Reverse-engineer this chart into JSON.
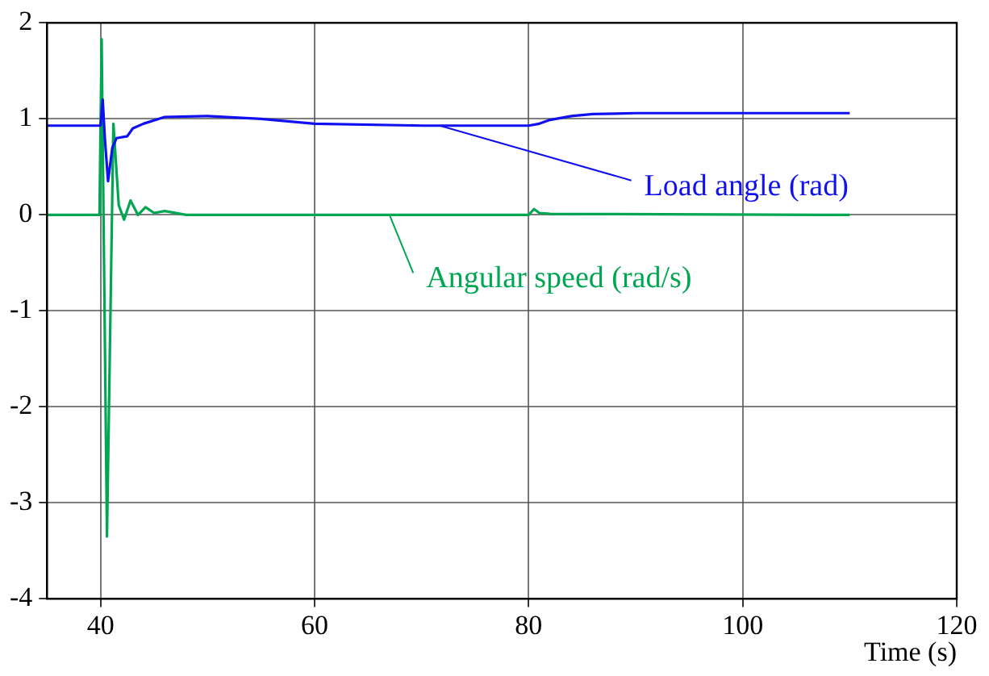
{
  "chart_data": {
    "type": "line",
    "xlabel": "Time (s)",
    "xlim": [
      35,
      120
    ],
    "xticks": [
      40,
      60,
      80,
      100,
      120
    ],
    "ylim": [
      -4,
      2
    ],
    "yticks": [
      -4,
      -3,
      -2,
      -1,
      0,
      1,
      2
    ],
    "grid": true,
    "legend": false,
    "marker": "none",
    "line_style": "solid",
    "series": [
      {
        "color": "#1010f0",
        "x": [
          35,
          40,
          40.2,
          40.4,
          40.7,
          41.1,
          41.5,
          42.5,
          43,
          44,
          46,
          50,
          55,
          60,
          70,
          80,
          81,
          82,
          84,
          86,
          90,
          100,
          110
        ],
        "values": [
          0.93,
          0.93,
          1.2,
          0.8,
          0.35,
          0.7,
          0.8,
          0.82,
          0.9,
          0.95,
          1.02,
          1.03,
          1.0,
          0.95,
          0.93,
          0.93,
          0.95,
          0.99,
          1.03,
          1.05,
          1.06,
          1.06,
          1.06
        ]
      },
      {
        "color": "#00a651",
        "x": [
          35,
          39.9,
          40.1,
          40.6,
          41.2,
          41.7,
          42.2,
          42.8,
          43.5,
          44.2,
          45,
          46,
          48,
          60,
          80,
          80.5,
          81,
          82,
          110
        ],
        "values": [
          0,
          0,
          1.83,
          -3.35,
          0.95,
          0.1,
          -0.05,
          0.15,
          0.0,
          0.08,
          0.02,
          0.04,
          0.0,
          0.0,
          0.0,
          0.06,
          0.02,
          0.01,
          0.0
        ]
      }
    ],
    "annotations": [
      {
        "text": "Load angle (rad)",
        "x": 71.7,
        "y": 0.93
      },
      {
        "text": "Angular speed (rad/s)",
        "x": 67,
        "y": 0
      }
    ]
  }
}
